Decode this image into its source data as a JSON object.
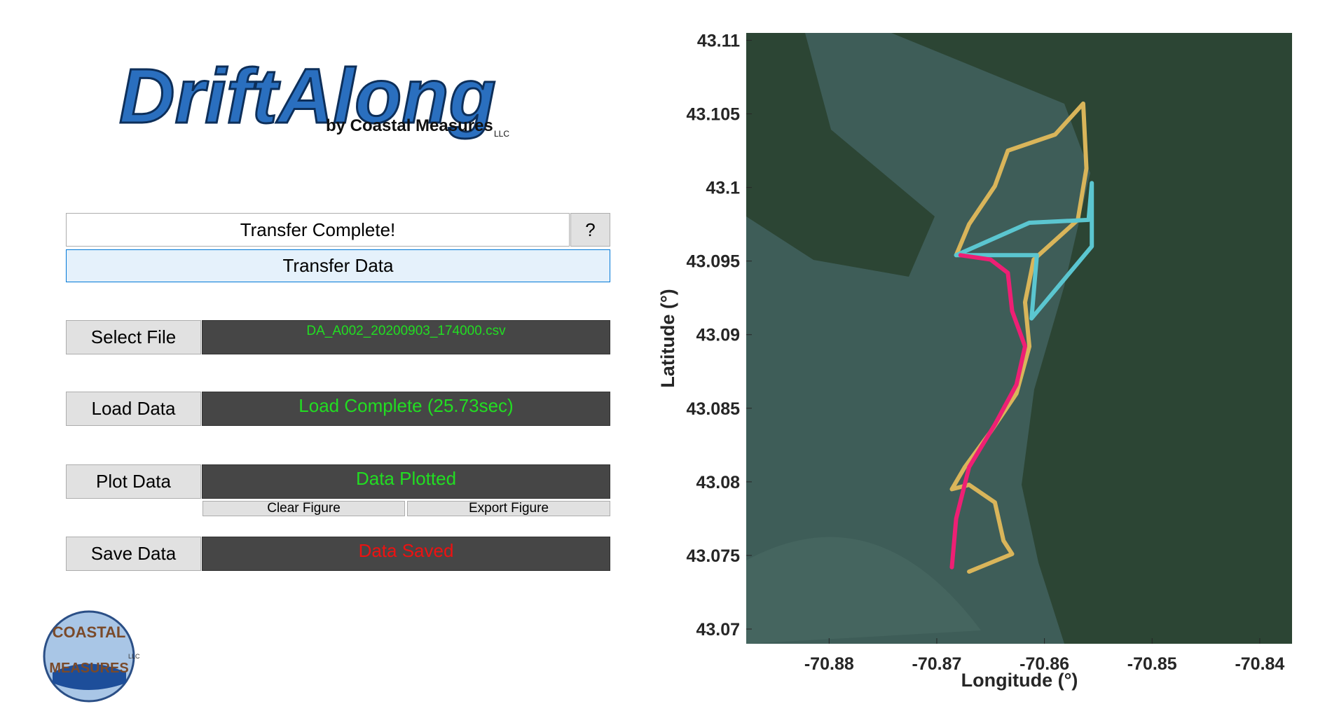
{
  "logo": {
    "title": "DriftAlong",
    "byline": "by Coastal Measures",
    "suffix": "LLC"
  },
  "badge": {
    "top": "COASTAL",
    "bottom": "MEASURES",
    "suffix": "LLC"
  },
  "panel": {
    "status": "Transfer Complete!",
    "help": "?",
    "transfer": "Transfer Data",
    "rows": [
      {
        "button": "Select File",
        "status": "DA_A002_20200903_174000.csv",
        "status_color": "#22dd22"
      },
      {
        "button": "Load Data",
        "status": "Load Complete (25.73sec)",
        "status_color": "#22dd22"
      },
      {
        "button": "Plot Data",
        "status": "Data Plotted",
        "status_color": "#22dd22"
      },
      {
        "button": "Save Data",
        "status": "Data Saved",
        "status_color": "#ee1111"
      }
    ],
    "clear": "Clear Figure",
    "export": "Export Figure"
  },
  "chart_data": {
    "type": "line",
    "xlabel": "Longitude (°)",
    "ylabel": "Latitude (°)",
    "xlim": [
      -70.8877,
      -70.837
    ],
    "ylim": [
      43.069,
      43.1105
    ],
    "xticks": [
      -70.88,
      -70.87,
      -70.86,
      -70.85,
      -70.84
    ],
    "yticks": [
      43.07,
      43.075,
      43.08,
      43.085,
      43.09,
      43.095,
      43.1,
      43.105,
      43.11
    ],
    "series": [
      {
        "color": "#d9b55a",
        "x": [
          -70.867,
          -70.863,
          -70.8638,
          -70.8646,
          -70.867,
          -70.8686,
          -70.8674,
          -70.865,
          -70.8626,
          -70.8614,
          -70.8618,
          -70.861,
          -70.8569,
          -70.8561,
          -70.8564,
          -70.859,
          -70.8634,
          -70.8646,
          -70.867,
          -70.8682
        ],
        "values": [
          43.0739,
          43.0751,
          43.076,
          43.0786,
          43.0798,
          43.0795,
          43.081,
          43.0834,
          43.086,
          43.0892,
          43.0922,
          43.0951,
          43.0978,
          43.1013,
          43.1057,
          43.1036,
          43.1025,
          43.1001,
          43.0975,
          43.0954
        ]
      },
      {
        "color": "#5bc6d0",
        "x": [
          -70.8682,
          -70.8614,
          -70.8559,
          -70.8556,
          -70.8556,
          -70.8612,
          -70.8607,
          -70.8682
        ],
        "values": [
          43.0954,
          43.0976,
          43.0978,
          43.1003,
          43.096,
          43.0911,
          43.0954,
          43.0954
        ]
      },
      {
        "color": "#ee1f74",
        "x": [
          -70.8686,
          -70.8682,
          -70.867,
          -70.8646,
          -70.8626,
          -70.8618,
          -70.863,
          -70.8634,
          -70.865,
          -70.8678
        ],
        "values": [
          43.0742,
          43.0775,
          43.081,
          43.0839,
          43.0866,
          43.0892,
          43.0916,
          43.0942,
          43.0951,
          43.0954
        ]
      }
    ]
  }
}
